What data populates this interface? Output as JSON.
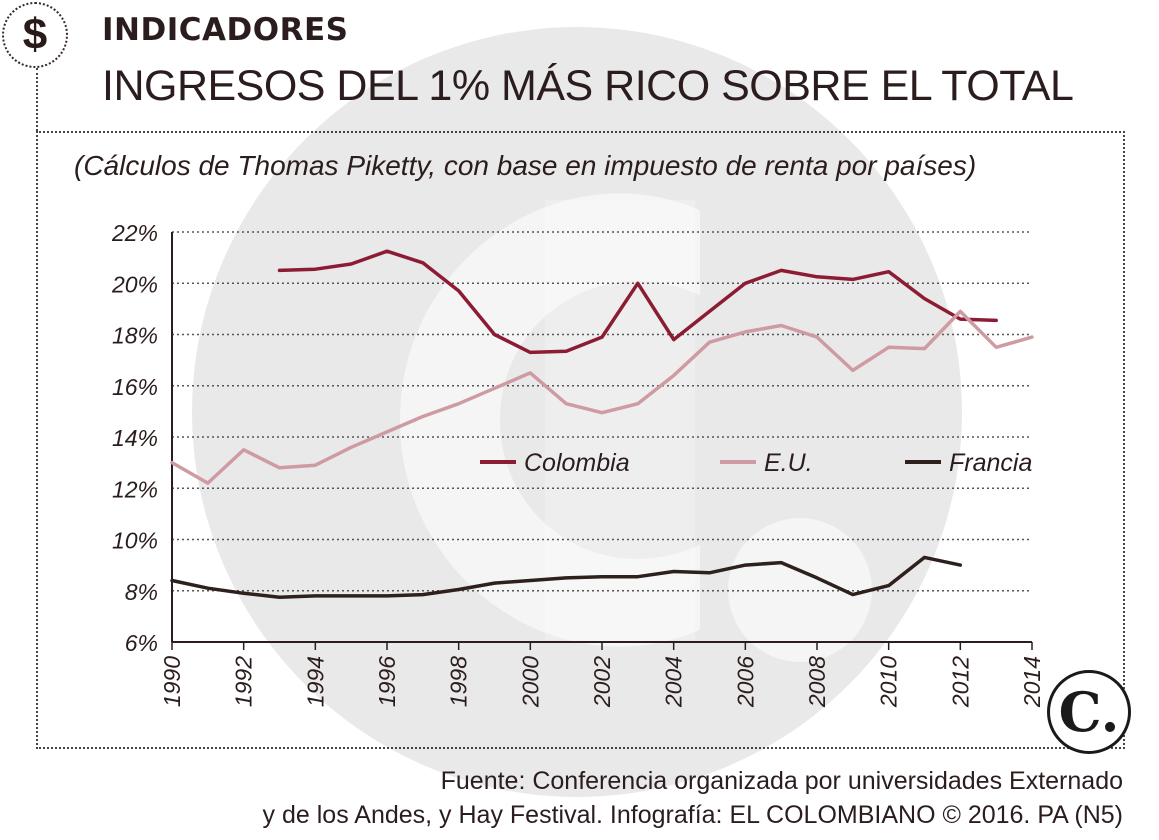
{
  "header": {
    "badge_symbol": "$",
    "section": "INDICADORES",
    "title": "INGRESOS DEL 1% MÁS RICO SOBRE EL TOTAL",
    "subtitle": "(Cálculos de Thomas Piketty, con base en impuesto de renta por países)"
  },
  "footer": {
    "source_line1": "Fuente: Conferencia organizada por universidades Externado",
    "source_line2": "y de los Andes, y Hay Festival. Infografía: EL COLOMBIANO © 2016. PA (N5)"
  },
  "logo": {
    "letter": "C."
  },
  "colors": {
    "colombia": "#8c1c34",
    "eu": "#cf9ba2",
    "francia": "#2e211d",
    "watermark": "#e3e1e1",
    "grid": "#555555",
    "axis": "#2b1d1d"
  },
  "chart_data": {
    "type": "line",
    "title": "INGRESOS DEL 1% MÁS RICO SOBRE EL TOTAL",
    "subtitle": "(Cálculos de Thomas Piketty, con base en impuesto de renta por países)",
    "xlabel": "",
    "ylabel": "",
    "xlim": [
      1990,
      2014
    ],
    "ylim": [
      6,
      22
    ],
    "x_ticks": [
      1990,
      1992,
      1994,
      1996,
      1998,
      2000,
      2002,
      2004,
      2006,
      2008,
      2010,
      2012,
      2014
    ],
    "y_ticks": [
      6,
      8,
      10,
      12,
      14,
      16,
      18,
      20,
      22
    ],
    "y_tick_labels": [
      "6%",
      "8%",
      "10%",
      "12%",
      "14%",
      "16%",
      "18%",
      "20%",
      "22%"
    ],
    "grid": "horizontal dotted",
    "legend_position": "center-right",
    "series": [
      {
        "name": "Colombia",
        "color_key": "colombia",
        "x": [
          1993,
          1994,
          1995,
          1996,
          1997,
          1998,
          1999,
          2000,
          2001,
          2002,
          2003,
          2004,
          2005,
          2006,
          2007,
          2008,
          2009,
          2010,
          2011,
          2012,
          2013
        ],
        "values": [
          20.5,
          20.55,
          20.75,
          21.25,
          20.8,
          19.7,
          18.0,
          17.3,
          17.35,
          17.9,
          20.0,
          17.8,
          18.9,
          20.0,
          20.5,
          20.25,
          20.15,
          20.45,
          19.4,
          18.6,
          18.55
        ]
      },
      {
        "name": "E.U.",
        "color_key": "eu",
        "x": [
          1990,
          1991,
          1992,
          1993,
          1994,
          1995,
          1996,
          1997,
          1998,
          1999,
          2000,
          2001,
          2002,
          2003,
          2004,
          2005,
          2006,
          2007,
          2008,
          2009,
          2010,
          2011,
          2012,
          2013,
          2014
        ],
        "values": [
          13.0,
          12.2,
          13.5,
          12.8,
          12.9,
          13.6,
          14.2,
          14.8,
          15.3,
          15.9,
          16.5,
          15.3,
          14.95,
          15.3,
          16.4,
          17.7,
          18.1,
          18.35,
          17.9,
          16.6,
          17.5,
          17.45,
          18.9,
          17.5,
          17.9
        ]
      },
      {
        "name": "Francia",
        "color_key": "francia",
        "x": [
          1990,
          1991,
          1992,
          1993,
          1994,
          1995,
          1996,
          1997,
          1998,
          1999,
          2000,
          2001,
          2002,
          2003,
          2004,
          2005,
          2006,
          2007,
          2008,
          2009,
          2010,
          2011,
          2012
        ],
        "values": [
          8.4,
          8.1,
          7.9,
          7.75,
          7.8,
          7.8,
          7.8,
          7.85,
          8.05,
          8.3,
          8.4,
          8.5,
          8.55,
          8.55,
          8.75,
          8.7,
          9.0,
          9.1,
          8.5,
          7.85,
          8.2,
          9.3,
          9.0
        ]
      }
    ]
  }
}
